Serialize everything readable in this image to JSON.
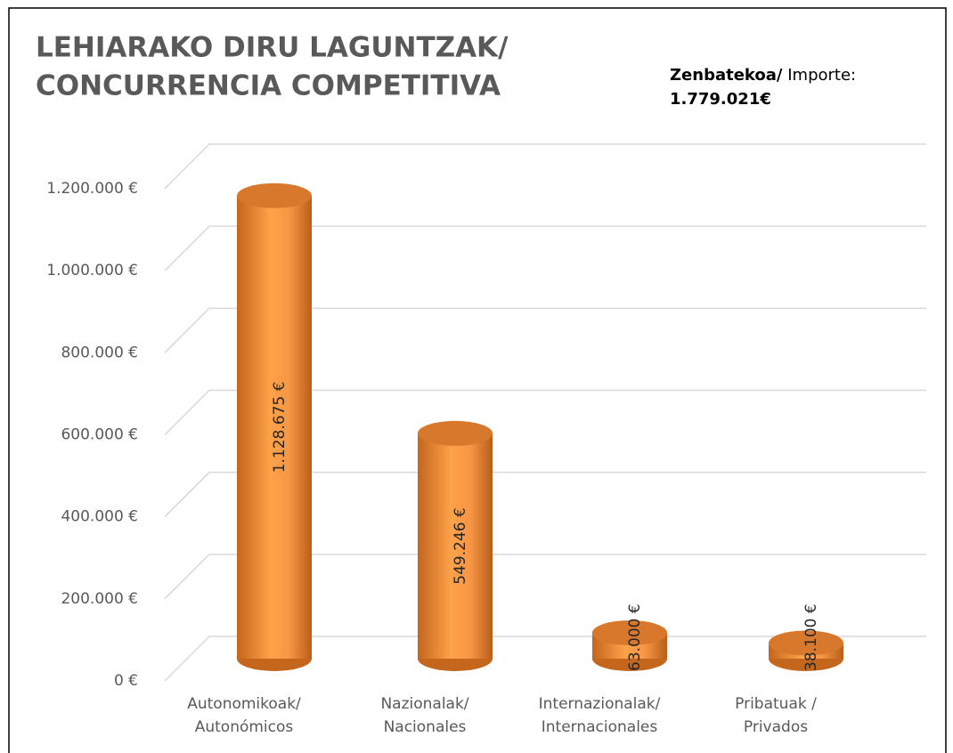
{
  "chart_data": {
    "type": "bar",
    "title": [
      "LEHIARAKO DIRU LAGUNTZAK/",
      "CONCURRENCIA COMPETITIVA"
    ],
    "annotation": {
      "bold": "Zenbatekoa/",
      "normal": " Importe:",
      "total": "1.779.021€"
    },
    "categories": [
      [
        "Autonomikoak/",
        "Autonómicos"
      ],
      [
        "Nazionalak/",
        "Nacionales"
      ],
      [
        "Internazionalak/",
        "Internacionales"
      ],
      [
        "Pribatuak /",
        "Privados"
      ]
    ],
    "values": [
      1128675,
      549246,
      63000,
      38100
    ],
    "value_labels": [
      "1.128.675 €",
      "549.246 €",
      "63.000 €",
      "38.100 €"
    ],
    "color": "#f79646",
    "ylim": [
      0,
      1200000
    ],
    "yticks": [
      {
        "value": 0,
        "label": "0 €"
      },
      {
        "value": 200000,
        "label": "200.000 €"
      },
      {
        "value": 400000,
        "label": "400.000 €"
      },
      {
        "value": 600000,
        "label": "600.000 €"
      },
      {
        "value": 800000,
        "label": "800.000 €"
      },
      {
        "value": 1000000,
        "label": "1.000.000 €"
      },
      {
        "value": 1200000,
        "label": "1.200.000 €"
      }
    ],
    "grid": true
  }
}
